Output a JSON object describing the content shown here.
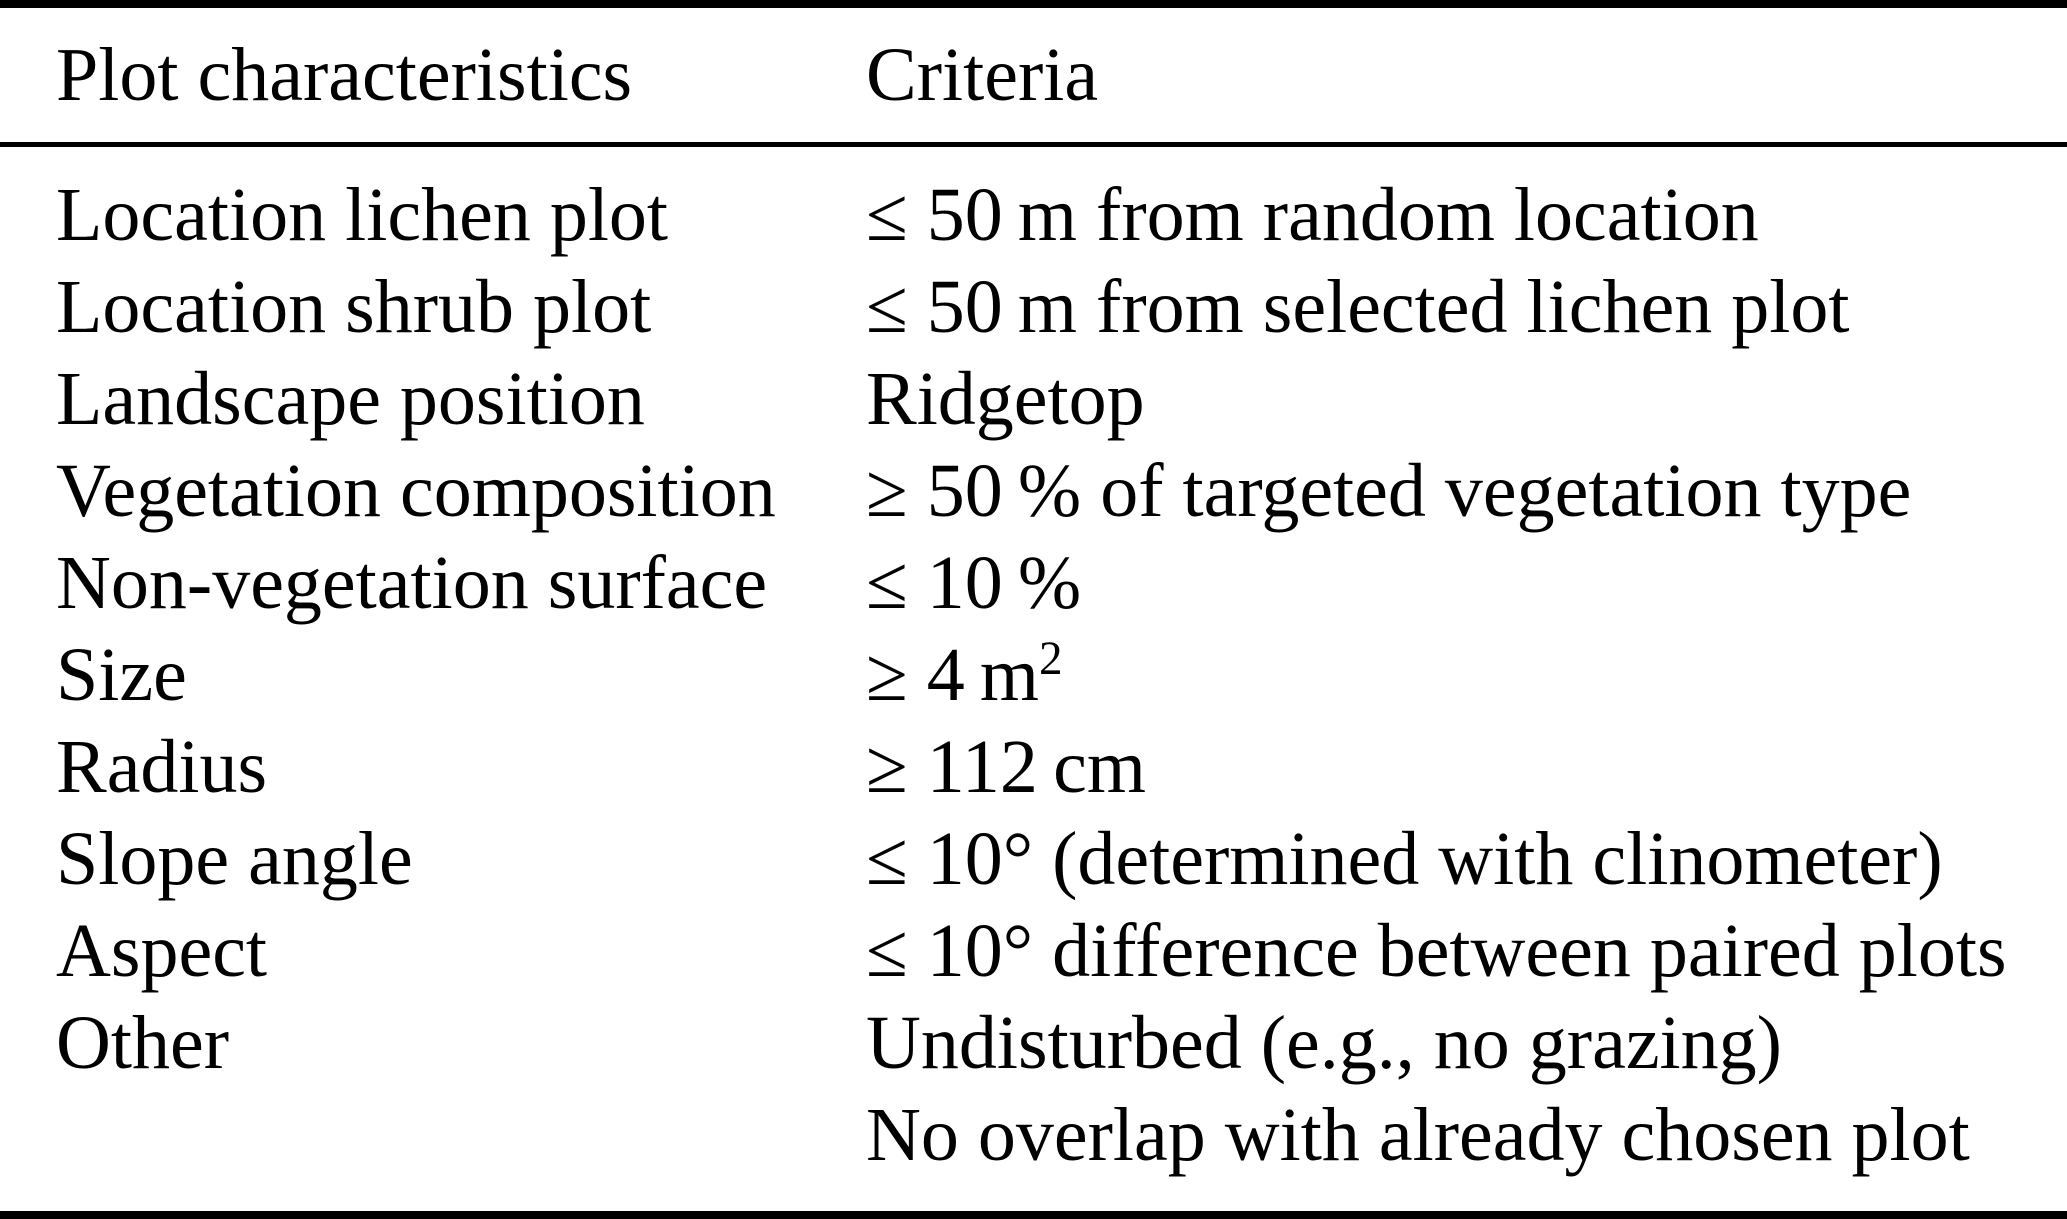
{
  "page": {
    "background_color": "#ffffff",
    "text_color": "#000000"
  },
  "table": {
    "header": {
      "characteristics": "Plot characteristics",
      "criteria": "Criteria"
    },
    "rows": [
      {
        "characteristic": "Location lichen plot",
        "criteria": [
          "≤ 50 m from random location"
        ]
      },
      {
        "characteristic": "Location shrub plot",
        "criteria": [
          "≤ 50 m from selected lichen plot"
        ]
      },
      {
        "characteristic": "Landscape position",
        "criteria": [
          "Ridgetop"
        ]
      },
      {
        "characteristic": "Vegetation composition",
        "criteria": [
          "≥ 50 % of targeted vegetation type"
        ]
      },
      {
        "characteristic": "Non-vegetation surface",
        "criteria": [
          "≤ 10 %"
        ]
      },
      {
        "characteristic": "Size",
        "criteria": [
          "≥ 4 m²"
        ]
      },
      {
        "characteristic": "Radius",
        "criteria": [
          "≥ 112 cm"
        ]
      },
      {
        "characteristic": "Slope angle",
        "criteria": [
          "≤ 10° (determined with clinometer)"
        ]
      },
      {
        "characteristic": "Aspect",
        "criteria": [
          "≤ 10° difference between paired plots"
        ]
      },
      {
        "characteristic": "Other",
        "criteria": [
          "Undisturbed (e.g., no grazing)",
          "No overlap with already chosen plot"
        ]
      }
    ]
  }
}
